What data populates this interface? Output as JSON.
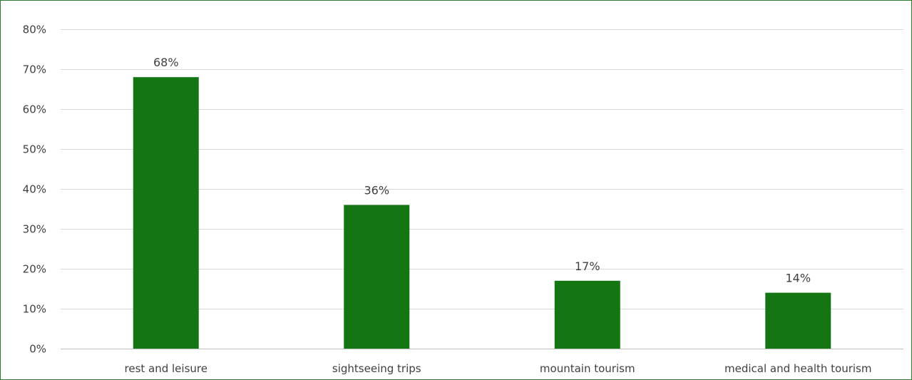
{
  "chart_data": {
    "type": "bar",
    "categories": [
      "rest and leisure",
      "sightseeing trips",
      "mountain tourism",
      "medical and health tourism"
    ],
    "values": [
      68,
      36,
      17,
      14
    ],
    "data_labels": [
      "68%",
      "36%",
      "17%",
      "14%"
    ],
    "ylim": [
      0,
      80
    ],
    "y_ticks": [
      0,
      10,
      20,
      30,
      40,
      50,
      60,
      70,
      80
    ],
    "y_tick_labels": [
      "0%",
      "10%",
      "20%",
      "30%",
      "40%",
      "50%",
      "60%",
      "70%",
      "80%"
    ],
    "title": "",
    "xlabel": "",
    "ylabel": "",
    "grid": true,
    "legend": "none",
    "bar_color": "#137613",
    "border_color": "#2e7d32"
  }
}
